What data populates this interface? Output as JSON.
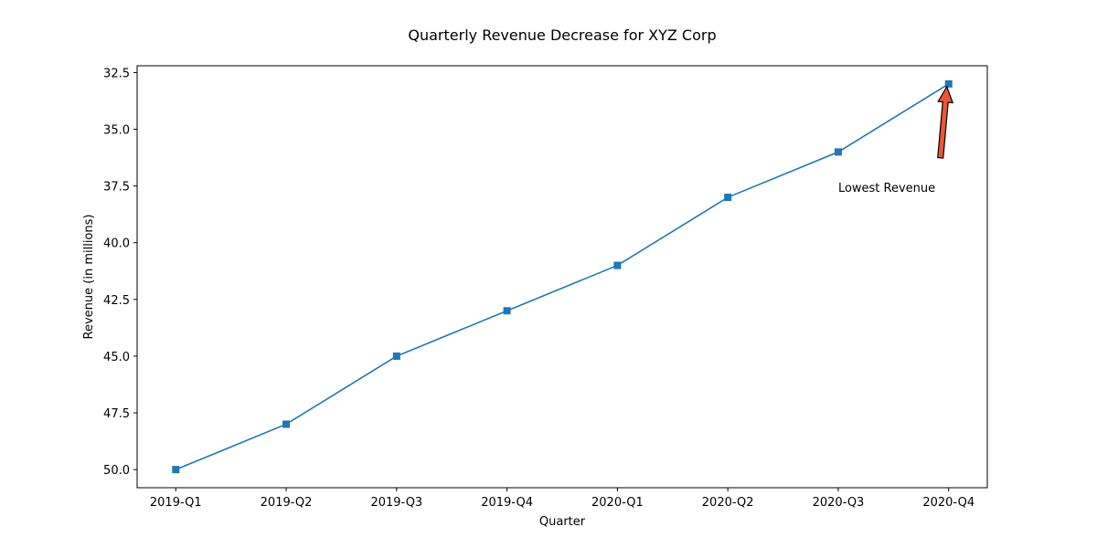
{
  "chart_data": {
    "type": "line",
    "title": "Quarterly Revenue Decrease for XYZ Corp",
    "xlabel": "Quarter",
    "ylabel": "Revenue (in millions)",
    "categories": [
      "2019-Q1",
      "2019-Q2",
      "2019-Q3",
      "2019-Q4",
      "2020-Q1",
      "2020-Q2",
      "2020-Q3",
      "2020-Q4"
    ],
    "series": [
      {
        "values": [
          50,
          48,
          45,
          43,
          41,
          38,
          36,
          33
        ],
        "color": "#1f77b4",
        "marker": "square"
      }
    ],
    "ylim": [
      50.8,
      32.2
    ],
    "y_inverted": true,
    "yticks": [
      32.5,
      35.0,
      37.5,
      40.0,
      42.5,
      45.0,
      47.5,
      50.0
    ],
    "grid": false,
    "annotation": {
      "text": "Lowest Revenue",
      "category": "2020-Q4",
      "value": 33,
      "text_category": "2020-Q3",
      "text_value": 37.6,
      "arrow_color": "#ee5533"
    }
  }
}
